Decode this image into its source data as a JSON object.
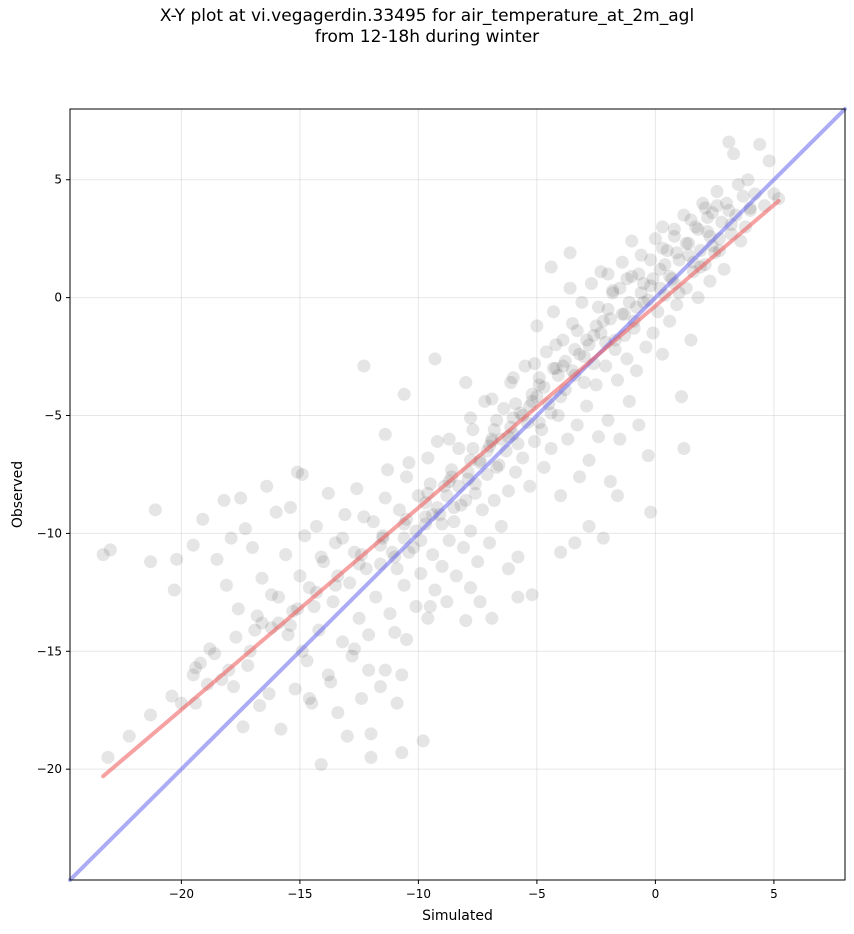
{
  "chart_data": {
    "type": "scatter",
    "title_line1": "X-Y plot at vi.vegagerdin.33495 for air_temperature_at_2m_agl",
    "title_line2": "from 12-18h during winter",
    "xlabel": "Simulated",
    "ylabel": "Observed",
    "xlim": [
      -24.7,
      8.0
    ],
    "ylim": [
      -24.7,
      8.0
    ],
    "xticks": [
      -20,
      -15,
      -10,
      -5,
      0,
      5
    ],
    "yticks": [
      -20,
      -15,
      -10,
      -5,
      0,
      5
    ],
    "xtick_labels": [
      "−20",
      "−15",
      "−10",
      "−5",
      "0",
      "5"
    ],
    "ytick_labels": [
      "−20",
      "−15",
      "−10",
      "−5",
      "0",
      "5"
    ],
    "grid": true,
    "point_color": "#333333",
    "identity_line_color": "#6666ee",
    "fit_line_color": "#ee5555",
    "identity_line": [
      [
        -24.7,
        -24.7
      ],
      [
        8.0,
        8.0
      ]
    ],
    "fit_line": [
      [
        -23.3,
        -20.3
      ],
      [
        5.2,
        4.1
      ]
    ],
    "points": [
      [
        -23.3,
        -10.9
      ],
      [
        -23.0,
        -10.7
      ],
      [
        -21.3,
        -11.2
      ],
      [
        -21.1,
        -9.0
      ],
      [
        -20.3,
        -12.4
      ],
      [
        -20.2,
        -11.1
      ],
      [
        -19.5,
        -10.5
      ],
      [
        -19.4,
        -15.7
      ],
      [
        -19.2,
        -15.5
      ],
      [
        -19.4,
        -17.2
      ],
      [
        -19.1,
        -9.4
      ],
      [
        -18.8,
        -14.9
      ],
      [
        -18.5,
        -11.1
      ],
      [
        -18.3,
        -16.2
      ],
      [
        -18.2,
        -8.6
      ],
      [
        -18.1,
        -12.2
      ],
      [
        -17.9,
        -10.2
      ],
      [
        -17.8,
        -16.5
      ],
      [
        -17.6,
        -13.2
      ],
      [
        -17.5,
        -8.5
      ],
      [
        -17.4,
        -18.2
      ],
      [
        -17.3,
        -9.8
      ],
      [
        -17.2,
        -15.6
      ],
      [
        -17.0,
        -10.6
      ],
      [
        -16.9,
        -14.1
      ],
      [
        -16.7,
        -17.3
      ],
      [
        -16.6,
        -11.9
      ],
      [
        -16.4,
        -8.0
      ],
      [
        -16.3,
        -16.8
      ],
      [
        -16.2,
        -12.6
      ],
      [
        -16.0,
        -9.1
      ],
      [
        -15.9,
        -13.8
      ],
      [
        -15.8,
        -18.3
      ],
      [
        -15.6,
        -10.9
      ],
      [
        -15.5,
        -14.3
      ],
      [
        -15.4,
        -8.9
      ],
      [
        -15.2,
        -16.6
      ],
      [
        -15.1,
        -13.2
      ],
      [
        -14.9,
        -7.5
      ],
      [
        -14.8,
        -10.1
      ],
      [
        -14.7,
        -15.4
      ],
      [
        -14.6,
        -12.3
      ],
      [
        -14.5,
        -17.2
      ],
      [
        -14.3,
        -9.7
      ],
      [
        -14.2,
        -14.1
      ],
      [
        -14.1,
        -19.8
      ],
      [
        -14.0,
        -11.2
      ],
      [
        -13.8,
        -8.3
      ],
      [
        -13.7,
        -16.3
      ],
      [
        -13.6,
        -12.9
      ],
      [
        -13.5,
        -10.4
      ],
      [
        -13.4,
        -17.6
      ],
      [
        -13.2,
        -14.6
      ],
      [
        -13.1,
        -9.2
      ],
      [
        -13.0,
        -18.6
      ],
      [
        -12.9,
        -12.1
      ],
      [
        -12.8,
        -15.2
      ],
      [
        -12.7,
        -10.8
      ],
      [
        -12.6,
        -8.1
      ],
      [
        -12.5,
        -13.6
      ],
      [
        -12.4,
        -17.0
      ],
      [
        -12.2,
        -11.5
      ],
      [
        -12.1,
        -14.3
      ],
      [
        -12.0,
        -18.5
      ],
      [
        -11.9,
        -9.5
      ],
      [
        -11.8,
        -12.7
      ],
      [
        -11.6,
        -16.5
      ],
      [
        -11.5,
        -10.2
      ],
      [
        -11.4,
        -15.8
      ],
      [
        -11.3,
        -7.3
      ],
      [
        -11.2,
        -13.4
      ],
      [
        -11.0,
        -11.0
      ],
      [
        -10.9,
        -17.2
      ],
      [
        -10.8,
        -9.0
      ],
      [
        -10.7,
        -19.3
      ],
      [
        -10.6,
        -12.2
      ],
      [
        -10.5,
        -14.5
      ],
      [
        -10.4,
        -7.0
      ],
      [
        -10.2,
        -10.6
      ],
      [
        -10.1,
        -13.1
      ],
      [
        -10.0,
        -8.4
      ],
      [
        -9.9,
        -11.7
      ],
      [
        -9.8,
        -18.8
      ],
      [
        -9.7,
        -9.6
      ],
      [
        -9.6,
        -13.6
      ],
      [
        -9.5,
        -7.9
      ],
      [
        -9.4,
        -10.9
      ],
      [
        -9.3,
        -12.4
      ],
      [
        -9.2,
        -6.1
      ],
      [
        -9.1,
        -9.2
      ],
      [
        -9.0,
        -11.4
      ],
      [
        -8.9,
        -8.0
      ],
      [
        -8.8,
        -12.9
      ],
      [
        -8.7,
        -10.3
      ],
      [
        -8.6,
        -7.3
      ],
      [
        -8.5,
        -9.5
      ],
      [
        -8.4,
        -11.8
      ],
      [
        -8.3,
        -6.4
      ],
      [
        -8.2,
        -8.8
      ],
      [
        -8.1,
        -10.6
      ],
      [
        -8.0,
        -13.7
      ],
      [
        -7.9,
        -7.7
      ],
      [
        -7.8,
        -9.9
      ],
      [
        -7.7,
        -5.6
      ],
      [
        -7.6,
        -8.3
      ],
      [
        -7.5,
        -11.2
      ],
      [
        -7.4,
        -6.9
      ],
      [
        -7.3,
        -9.0
      ],
      [
        -7.2,
        -4.4
      ],
      [
        -7.1,
        -7.5
      ],
      [
        -7.0,
        -10.4
      ],
      [
        -6.9,
        -6.1
      ],
      [
        -6.8,
        -8.6
      ],
      [
        -6.7,
        -5.2
      ],
      [
        -6.6,
        -7.1
      ],
      [
        -6.5,
        -9.7
      ],
      [
        -6.4,
        -4.7
      ],
      [
        -6.3,
        -6.5
      ],
      [
        -6.2,
        -8.2
      ],
      [
        -6.1,
        -3.6
      ],
      [
        -6.0,
        -5.8
      ],
      [
        -5.9,
        -7.4
      ],
      [
        -5.8,
        -11.0
      ],
      [
        -5.7,
        -4.9
      ],
      [
        -5.6,
        -6.8
      ],
      [
        -5.5,
        -2.9
      ],
      [
        -5.4,
        -5.3
      ],
      [
        -5.3,
        -8.0
      ],
      [
        -5.2,
        -4.1
      ],
      [
        -5.1,
        -6.1
      ],
      [
        -5.0,
        -1.2
      ],
      [
        -4.9,
        -3.4
      ],
      [
        -4.8,
        -5.6
      ],
      [
        -4.7,
        -7.2
      ],
      [
        -4.6,
        -2.3
      ],
      [
        -4.5,
        -4.5
      ],
      [
        -4.4,
        -6.4
      ],
      [
        -4.3,
        -0.6
      ],
      [
        -4.2,
        -3.0
      ],
      [
        -4.1,
        -5.0
      ],
      [
        -4.0,
        -8.4
      ],
      [
        -3.9,
        -1.8
      ],
      [
        -3.8,
        -3.9
      ],
      [
        -3.7,
        -6.0
      ],
      [
        -3.6,
        1.9
      ],
      [
        -3.5,
        -1.1
      ],
      [
        -3.4,
        -3.3
      ],
      [
        -3.3,
        -5.4
      ],
      [
        -3.2,
        -7.6
      ],
      [
        -3.1,
        -0.2
      ],
      [
        -3.0,
        -2.5
      ],
      [
        -2.9,
        -4.6
      ],
      [
        -2.8,
        -6.9
      ],
      [
        -2.7,
        0.6
      ],
      [
        -2.6,
        -1.6
      ],
      [
        -2.5,
        -3.7
      ],
      [
        -2.4,
        -5.9
      ],
      [
        -2.3,
        1.1
      ],
      [
        -2.2,
        -1.0
      ],
      [
        -2.1,
        -2.9
      ],
      [
        -2.0,
        -5.2
      ],
      [
        -1.9,
        -7.8
      ],
      [
        -1.8,
        0.3
      ],
      [
        -1.7,
        -1.8
      ],
      [
        -1.6,
        -3.5
      ],
      [
        -1.5,
        -6.0
      ],
      [
        -1.4,
        1.5
      ],
      [
        -1.3,
        -0.7
      ],
      [
        -1.2,
        -2.6
      ],
      [
        -1.1,
        -4.4
      ],
      [
        -1.0,
        0.9
      ],
      [
        -0.9,
        -1.3
      ],
      [
        -0.8,
        -3.1
      ],
      [
        -0.7,
        -5.4
      ],
      [
        -0.6,
        1.8
      ],
      [
        -0.5,
        -0.2
      ],
      [
        -0.4,
        -2.1
      ],
      [
        -0.3,
        -6.7
      ],
      [
        -0.2,
        0.5
      ],
      [
        -0.1,
        -1.5
      ],
      [
        0.0,
        2.5
      ],
      [
        0.1,
        -0.6
      ],
      [
        0.2,
        1.2
      ],
      [
        0.3,
        -2.4
      ],
      [
        0.4,
        0.1
      ],
      [
        0.5,
        2.0
      ],
      [
        0.6,
        -1.0
      ],
      [
        0.7,
        0.8
      ],
      [
        0.8,
        2.9
      ],
      [
        0.9,
        -0.3
      ],
      [
        1.0,
        1.6
      ],
      [
        1.1,
        -4.2
      ],
      [
        1.2,
        3.5
      ],
      [
        1.3,
        0.4
      ],
      [
        1.4,
        2.3
      ],
      [
        1.5,
        -1.8
      ],
      [
        1.6,
        1.1
      ],
      [
        1.7,
        3.0
      ],
      [
        1.8,
        0.0
      ],
      [
        1.9,
        2.0
      ],
      [
        2.0,
        4.0
      ],
      [
        2.1,
        1.4
      ],
      [
        2.2,
        2.8
      ],
      [
        2.3,
        0.7
      ],
      [
        2.4,
        3.6
      ],
      [
        2.5,
        1.9
      ],
      [
        2.6,
        4.5
      ],
      [
        2.7,
        2.5
      ],
      [
        2.8,
        3.2
      ],
      [
        2.9,
        1.2
      ],
      [
        3.0,
        4.0
      ],
      [
        3.1,
        6.6
      ],
      [
        3.2,
        2.7
      ],
      [
        3.3,
        6.1
      ],
      [
        3.4,
        3.5
      ],
      [
        3.5,
        4.8
      ],
      [
        3.6,
        2.4
      ],
      [
        3.7,
        4.3
      ],
      [
        3.8,
        3.0
      ],
      [
        3.9,
        5.0
      ],
      [
        4.0,
        3.8
      ],
      [
        4.2,
        4.4
      ],
      [
        4.4,
        6.5
      ],
      [
        4.6,
        3.9
      ],
      [
        4.8,
        5.8
      ],
      [
        5.0,
        4.4
      ],
      [
        5.2,
        4.2
      ],
      [
        -12.3,
        -2.9
      ],
      [
        -9.3,
        -2.6
      ],
      [
        -10.6,
        -4.1
      ],
      [
        -11.4,
        -5.8
      ],
      [
        -8.0,
        -3.6
      ],
      [
        -5.8,
        -12.7
      ],
      [
        -5.2,
        -12.6
      ],
      [
        -15.1,
        -7.4
      ],
      [
        -16.6,
        -13.8
      ],
      [
        -14.9,
        -15.0
      ],
      [
        -12.1,
        -15.8
      ],
      [
        -12.0,
        -19.5
      ],
      [
        -10.7,
        -16.0
      ],
      [
        -6.9,
        -13.6
      ],
      [
        -7.4,
        -12.9
      ],
      [
        -2.2,
        -10.2
      ],
      [
        -3.4,
        -10.4
      ],
      [
        -0.2,
        -9.1
      ],
      [
        1.2,
        -6.4
      ],
      [
        -1.6,
        -8.4
      ],
      [
        -2.8,
        -9.7
      ],
      [
        -4.0,
        -10.8
      ],
      [
        -6.2,
        -11.5
      ],
      [
        -7.8,
        -12.3
      ],
      [
        -9.5,
        -13.1
      ],
      [
        -11.0,
        -14.2
      ],
      [
        -12.7,
        -14.9
      ],
      [
        -13.8,
        -16.0
      ],
      [
        -14.6,
        -17.0
      ],
      [
        -4.4,
        1.3
      ],
      [
        -3.6,
        0.4
      ],
      [
        -2.0,
        1.0
      ],
      [
        -1.0,
        2.4
      ],
      [
        0.3,
        3.0
      ],
      [
        -0.8,
        -0.4
      ],
      [
        -1.9,
        -0.9
      ],
      [
        -2.8,
        -2.0
      ],
      [
        -3.9,
        -2.9
      ],
      [
        -4.9,
        -3.7
      ],
      [
        -5.9,
        -4.5
      ],
      [
        -6.8,
        -5.6
      ],
      [
        -7.7,
        -6.4
      ],
      [
        -8.6,
        -7.6
      ],
      [
        -9.6,
        -8.3
      ],
      [
        -10.5,
        -9.4
      ],
      [
        -11.5,
        -10.1
      ],
      [
        -12.4,
        -10.9
      ],
      [
        -13.4,
        -11.8
      ],
      [
        -14.3,
        -12.5
      ],
      [
        -15.3,
        -13.3
      ],
      [
        -16.2,
        -14.0
      ],
      [
        -17.1,
        -15.0
      ],
      [
        -18.0,
        -15.8
      ],
      [
        -18.9,
        -16.4
      ],
      [
        -20.0,
        -17.2
      ],
      [
        0.8,
        0.6
      ],
      [
        1.6,
        1.5
      ],
      [
        2.4,
        2.2
      ],
      [
        3.2,
        3.1
      ],
      [
        4.0,
        3.7
      ],
      [
        -0.6,
        0.2
      ],
      [
        -1.4,
        -0.7
      ],
      [
        -2.3,
        -1.5
      ],
      [
        -3.2,
        -2.4
      ],
      [
        -4.1,
        -3.3
      ],
      [
        -5.0,
        -4.2
      ],
      [
        -6.0,
        -5.1
      ],
      [
        -6.9,
        -6.0
      ],
      [
        -7.8,
        -6.9
      ],
      [
        -8.7,
        -7.8
      ],
      [
        -9.7,
        -8.7
      ],
      [
        -10.6,
        -9.6
      ],
      [
        -11.6,
        -10.5
      ],
      [
        -12.5,
        -11.3
      ],
      [
        -13.5,
        -12.2
      ],
      [
        -14.4,
        -13.1
      ],
      [
        -15.4,
        -13.9
      ],
      [
        0.2,
        0.4
      ],
      [
        -0.3,
        -0.1
      ],
      [
        0.6,
        0.9
      ],
      [
        1.0,
        0.2
      ],
      [
        1.4,
        1.8
      ],
      [
        1.9,
        1.3
      ],
      [
        2.3,
        2.6
      ],
      [
        2.7,
        2.0
      ],
      [
        3.1,
        3.7
      ],
      [
        -0.9,
        -1.0
      ],
      [
        -1.3,
        -1.6
      ],
      [
        -1.7,
        -2.2
      ],
      [
        -2.1,
        -1.9
      ],
      [
        -2.6,
        -2.8
      ],
      [
        -3.0,
        -3.6
      ],
      [
        -3.5,
        -3.1
      ],
      [
        -4.0,
        -4.2
      ],
      [
        -4.4,
        -4.9
      ],
      [
        -4.9,
        -5.3
      ],
      [
        -5.3,
        -4.6
      ],
      [
        -5.8,
        -6.2
      ],
      [
        -6.2,
        -5.9
      ],
      [
        -6.7,
        -7.2
      ],
      [
        -7.1,
        -6.5
      ],
      [
        -7.6,
        -7.9
      ],
      [
        -8.0,
        -8.6
      ],
      [
        -8.5,
        -8.9
      ],
      [
        -9.0,
        -9.6
      ],
      [
        -9.4,
        -9.2
      ],
      [
        -9.9,
        -10.3
      ],
      [
        -10.4,
        -10.8
      ],
      [
        -10.9,
        -11.5
      ],
      [
        -0.1,
        0.8
      ],
      [
        0.4,
        1.4
      ],
      [
        0.9,
        1.9
      ],
      [
        1.3,
        2.3
      ],
      [
        1.8,
        2.9
      ],
      [
        2.2,
        3.4
      ],
      [
        2.6,
        3.9
      ],
      [
        -0.5,
        0.6
      ],
      [
        -1.1,
        -0.2
      ],
      [
        -1.5,
        0.4
      ],
      [
        -2.0,
        -0.5
      ],
      [
        -2.5,
        -1.2
      ],
      [
        -2.9,
        -1.8
      ],
      [
        -3.4,
        -2.2
      ],
      [
        -3.8,
        -2.7
      ],
      [
        -4.3,
        -3.0
      ],
      [
        -4.7,
        -3.8
      ],
      [
        -5.2,
        -4.4
      ],
      [
        -5.6,
        -5.0
      ],
      [
        -6.1,
        -5.5
      ],
      [
        -6.5,
        -6.0
      ],
      [
        -7.0,
        -6.3
      ],
      [
        -7.4,
        -7.0
      ],
      [
        -7.9,
        -7.4
      ],
      [
        -8.3,
        -8.0
      ],
      [
        -8.8,
        -8.4
      ],
      [
        -9.2,
        -8.9
      ],
      [
        -9.7,
        -9.3
      ],
      [
        -10.1,
        -9.9
      ],
      [
        -10.6,
        -10.2
      ],
      [
        -11.1,
        -10.8
      ],
      [
        -11.6,
        -11.3
      ],
      [
        -0.7,
        1.0
      ],
      [
        -0.2,
        1.6
      ],
      [
        0.3,
        2.1
      ],
      [
        0.8,
        2.6
      ],
      [
        1.5,
        3.3
      ],
      [
        2.1,
        3.8
      ],
      [
        -1.2,
        0.8
      ],
      [
        -1.8,
        0.2
      ],
      [
        -2.4,
        -0.4
      ],
      [
        -3.3,
        -1.4
      ],
      [
        -4.2,
        -2.0
      ],
      [
        -5.1,
        -2.8
      ],
      [
        -6.0,
        -3.4
      ],
      [
        -6.9,
        -4.3
      ],
      [
        -7.8,
        -5.1
      ],
      [
        -8.7,
        -6.0
      ],
      [
        -9.6,
        -6.8
      ],
      [
        -10.5,
        -7.6
      ],
      [
        -11.4,
        -8.5
      ],
      [
        -12.3,
        -9.3
      ],
      [
        -13.2,
        -10.2
      ],
      [
        -14.1,
        -11.0
      ],
      [
        -15.0,
        -11.8
      ],
      [
        -15.9,
        -12.7
      ],
      [
        -16.8,
        -13.5
      ],
      [
        -17.7,
        -14.4
      ],
      [
        -18.6,
        -15.1
      ],
      [
        -19.5,
        -16.0
      ],
      [
        -20.4,
        -16.9
      ],
      [
        -21.3,
        -17.7
      ],
      [
        -22.2,
        -18.6
      ],
      [
        -23.1,
        -19.5
      ]
    ]
  }
}
